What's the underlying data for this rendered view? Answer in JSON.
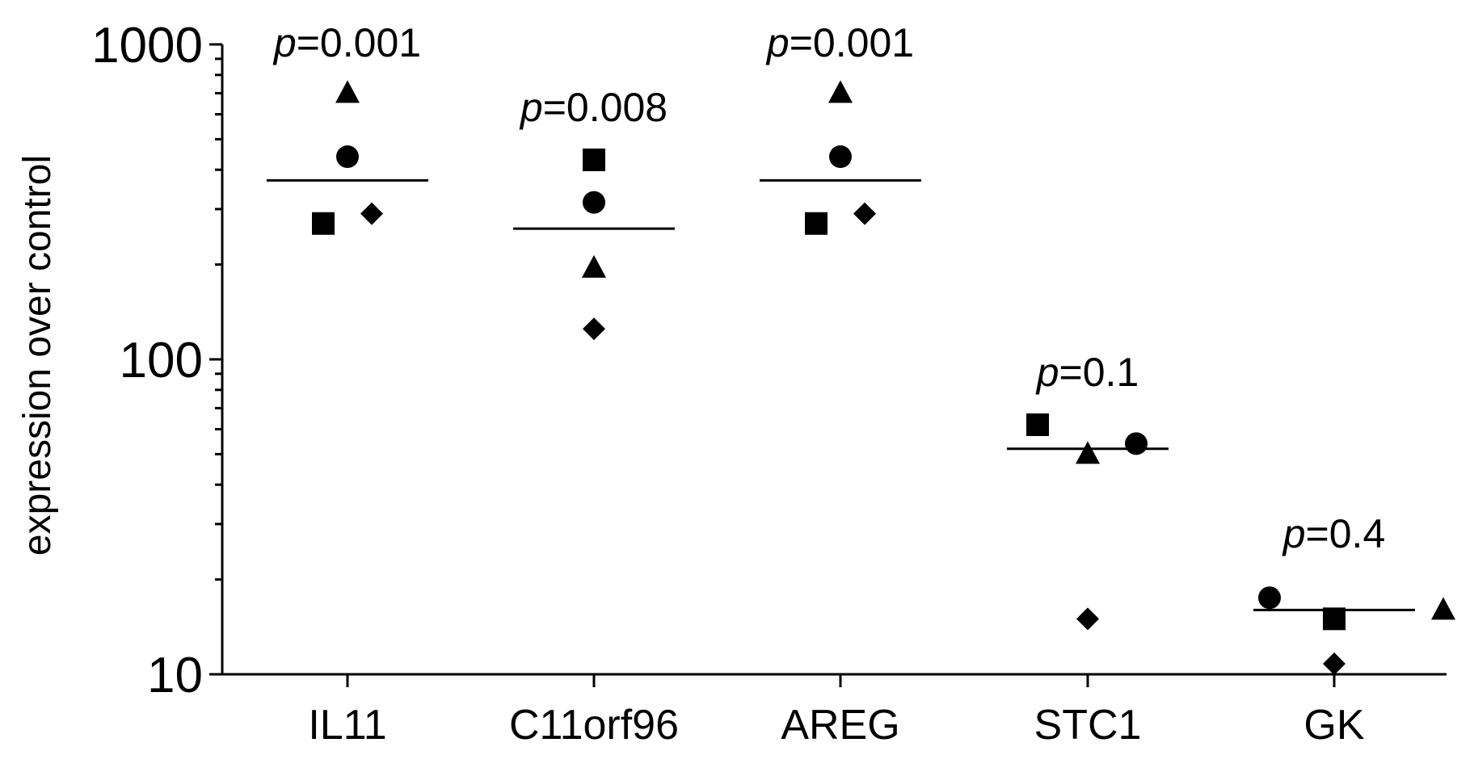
{
  "chart_data": {
    "type": "scatter",
    "title": "",
    "xlabel": "",
    "ylabel": "expression over control",
    "yscale": "log",
    "ylim": [
      10,
      1000
    ],
    "y_ticks": [
      "10",
      "100",
      "1000"
    ],
    "categories": [
      "IL11",
      "C11orf96",
      "AREG",
      "STC1",
      "GK"
    ],
    "p_prefix": "p",
    "p_values": [
      "=0.001",
      "=0.008",
      "=0.001",
      "=0.1",
      "=0.4"
    ],
    "means": [
      370,
      260,
      370,
      52,
      16
    ],
    "series": [
      {
        "name": "triangle",
        "marker": "triangle-icon",
        "values": [
          700,
          195,
          700,
          50,
          16
        ]
      },
      {
        "name": "circle",
        "marker": "circle-icon",
        "values": [
          440,
          315,
          440,
          54,
          17.5
        ]
      },
      {
        "name": "square",
        "marker": "square-icon",
        "values": [
          270,
          430,
          270,
          62,
          15
        ]
      },
      {
        "name": "diamond",
        "marker": "diamond-icon",
        "values": [
          290,
          125,
          290,
          15,
          10.8
        ]
      }
    ]
  }
}
